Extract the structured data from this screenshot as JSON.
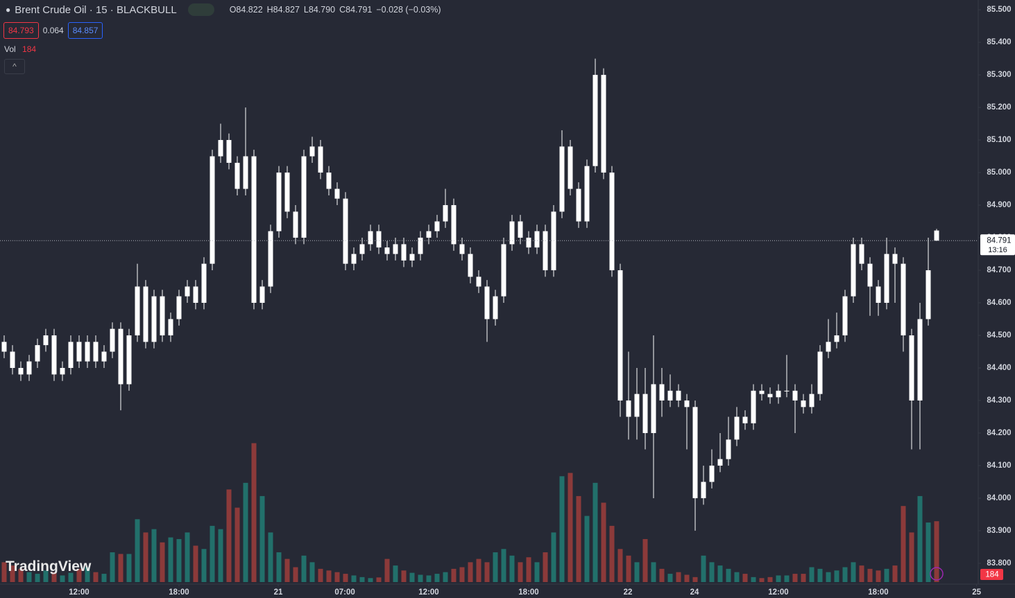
{
  "header": {
    "title": "Brent Crude Oil · 15 · BLACKBULL",
    "open": "O84.822",
    "high": "H84.827",
    "low": "L84.790",
    "close": "C84.791",
    "change": "−0.028 (−0.03%)",
    "bid": "84.793",
    "spread": "0.064",
    "ask": "84.857",
    "vol_label": "Vol",
    "vol_value": "184",
    "watermark": "TradingView",
    "price_tag": "84.791",
    "countdown": "13:16",
    "vol_tag": "184"
  },
  "chart_data": {
    "type": "candlestick",
    "candle_color": "#ffffff",
    "up_volume_color": "#22706b",
    "down_volume_color": "#8c3a3a",
    "xlim": [
      -0.5,
      117
    ],
    "xticks": [
      {
        "value": 9,
        "label": "12:00"
      },
      {
        "value": 21,
        "label": "18:00"
      },
      {
        "value": 32.92,
        "label": "21"
      },
      {
        "value": 40.92,
        "label": "07:00"
      },
      {
        "value": 51,
        "label": "12:00"
      },
      {
        "value": 63,
        "label": "18:00"
      },
      {
        "value": 74.92,
        "label": "22"
      },
      {
        "value": 82.92,
        "label": "24"
      },
      {
        "value": 93,
        "label": "12:00"
      },
      {
        "value": 105,
        "label": "18:00"
      },
      {
        "value": 116.8,
        "label": "25"
      }
    ],
    "ylim": [
      83.736,
      85.53
    ],
    "yticks": [
      {
        "value": 83.8,
        "label": "83.800"
      },
      {
        "value": 83.9,
        "label": "83.900"
      },
      {
        "value": 84.0,
        "label": "84.000"
      },
      {
        "value": 84.1,
        "label": "84.100"
      },
      {
        "value": 84.2,
        "label": "84.200"
      },
      {
        "value": 84.3,
        "label": "84.300"
      },
      {
        "value": 84.4,
        "label": "84.400"
      },
      {
        "value": 84.5,
        "label": "84.500"
      },
      {
        "value": 84.6,
        "label": "84.600"
      },
      {
        "value": 84.7,
        "label": "84.700"
      },
      {
        "value": 84.8,
        "label": "84.800"
      },
      {
        "value": 84.9,
        "label": "84.900"
      },
      {
        "value": 85.0,
        "label": "85.000"
      },
      {
        "value": 85.1,
        "label": "85.100"
      },
      {
        "value": 85.2,
        "label": "85.200"
      },
      {
        "value": 85.3,
        "label": "85.300"
      },
      {
        "value": 85.4,
        "label": "85.400"
      },
      {
        "value": 85.5,
        "label": "85.500"
      }
    ],
    "last_price": 84.791,
    "vlim": [
      0,
      440
    ],
    "open": [
      84.48,
      84.45,
      84.4,
      84.38,
      84.42,
      84.47,
      84.5,
      84.38,
      84.4,
      84.48,
      84.42,
      84.48,
      84.42,
      84.45,
      84.52,
      84.35,
      84.5,
      84.65,
      84.48,
      84.62,
      84.5,
      84.55,
      84.62,
      84.65,
      84.6,
      84.72,
      85.05,
      85.1,
      85.03,
      84.95,
      85.05,
      84.6,
      84.65,
      84.82,
      85.0,
      84.88,
      84.8,
      85.05,
      85.08,
      85.0,
      84.95,
      84.92,
      84.72,
      84.75,
      84.78,
      84.82,
      84.77,
      84.75,
      84.78,
      84.73,
      84.75,
      84.8,
      84.82,
      84.85,
      84.9,
      84.78,
      84.75,
      84.68,
      84.65,
      84.55,
      84.62,
      84.78,
      84.85,
      84.8,
      84.77,
      84.82,
      84.7,
      84.88,
      85.08,
      84.95,
      84.85,
      85.02,
      85.3,
      85.0,
      84.7,
      84.3,
      84.25,
      84.32,
      84.2,
      84.35,
      84.3,
      84.33,
      84.3,
      84.28,
      84.0,
      84.05,
      84.1,
      84.12,
      84.18,
      84.25,
      84.23,
      84.33,
      84.32,
      84.31,
      84.33,
      84.33,
      84.3,
      84.28,
      84.32,
      84.45,
      84.48,
      84.5,
      84.62,
      84.78,
      84.72,
      84.65,
      84.6,
      84.75,
      84.72,
      84.5,
      84.3,
      84.55,
      84.822
    ],
    "high": [
      84.5,
      84.47,
      84.42,
      84.44,
      84.49,
      84.52,
      84.52,
      84.42,
      84.5,
      84.5,
      84.5,
      84.5,
      84.47,
      84.54,
      84.54,
      84.52,
      84.72,
      84.67,
      84.64,
      84.64,
      84.57,
      84.64,
      84.67,
      84.67,
      84.74,
      85.07,
      85.15,
      85.12,
      85.05,
      85.2,
      85.07,
      84.67,
      84.84,
      85.02,
      85.02,
      84.9,
      85.07,
      85.11,
      85.1,
      85.02,
      84.97,
      84.94,
      84.77,
      84.8,
      84.84,
      84.84,
      84.79,
      84.8,
      84.8,
      84.77,
      84.82,
      84.84,
      84.87,
      84.95,
      84.92,
      84.8,
      84.77,
      84.7,
      84.67,
      84.64,
      84.8,
      84.87,
      84.87,
      84.82,
      84.84,
      84.84,
      84.9,
      85.13,
      85.1,
      84.97,
      85.04,
      85.35,
      85.32,
      85.02,
      84.72,
      84.45,
      84.4,
      84.4,
      84.5,
      84.4,
      84.38,
      84.35,
      84.32,
      84.3,
      84.1,
      84.15,
      84.2,
      84.25,
      84.28,
      84.27,
      84.35,
      84.35,
      84.34,
      84.35,
      84.44,
      84.35,
      84.32,
      84.35,
      84.47,
      84.55,
      84.57,
      84.64,
      84.8,
      84.8,
      84.74,
      84.67,
      84.8,
      84.77,
      84.74,
      84.52,
      84.6,
      84.8,
      84.827
    ],
    "low": [
      84.43,
      84.38,
      84.36,
      84.36,
      84.4,
      84.45,
      84.36,
      84.36,
      84.38,
      84.4,
      84.4,
      84.4,
      84.4,
      84.43,
      84.27,
      84.33,
      84.48,
      84.46,
      84.46,
      84.48,
      84.48,
      84.53,
      84.6,
      84.58,
      84.58,
      84.7,
      85.03,
      85.01,
      84.93,
      84.93,
      84.58,
      84.58,
      84.63,
      84.8,
      84.86,
      84.78,
      84.78,
      85.03,
      84.98,
      84.93,
      84.9,
      84.7,
      84.7,
      84.73,
      84.76,
      84.75,
      84.73,
      84.73,
      84.71,
      84.71,
      84.73,
      84.78,
      84.8,
      84.83,
      84.76,
      84.73,
      84.66,
      84.63,
      84.48,
      84.53,
      84.6,
      84.76,
      84.78,
      84.75,
      84.75,
      84.68,
      84.68,
      84.86,
      84.93,
      84.83,
      84.83,
      85.0,
      84.98,
      84.68,
      84.25,
      84.18,
      84.18,
      84.15,
      84.0,
      84.25,
      84.28,
      84.28,
      84.15,
      83.9,
      83.98,
      84.03,
      84.08,
      84.1,
      84.16,
      84.21,
      84.21,
      84.3,
      84.29,
      84.29,
      84.31,
      84.2,
      84.26,
      84.26,
      84.3,
      84.43,
      84.46,
      84.48,
      84.6,
      84.7,
      84.56,
      84.56,
      84.58,
      84.6,
      84.45,
      84.15,
      84.15,
      84.53,
      84.79
    ],
    "close": [
      84.45,
      84.4,
      84.38,
      84.42,
      84.47,
      84.5,
      84.38,
      84.4,
      84.48,
      84.42,
      84.48,
      84.42,
      84.45,
      84.52,
      84.35,
      84.5,
      84.65,
      84.48,
      84.62,
      84.5,
      84.55,
      84.62,
      84.65,
      84.6,
      84.72,
      85.05,
      85.1,
      85.03,
      84.95,
      85.05,
      84.6,
      84.65,
      84.82,
      85.0,
      84.88,
      84.8,
      85.05,
      85.08,
      85.0,
      84.95,
      84.92,
      84.72,
      84.75,
      84.78,
      84.82,
      84.77,
      84.75,
      84.78,
      84.73,
      84.75,
      84.8,
      84.82,
      84.85,
      84.9,
      84.78,
      84.75,
      84.68,
      84.65,
      84.55,
      84.62,
      84.78,
      84.85,
      84.8,
      84.77,
      84.82,
      84.7,
      84.88,
      85.08,
      84.95,
      84.85,
      85.02,
      85.3,
      85.0,
      84.7,
      84.3,
      84.25,
      84.32,
      84.2,
      84.35,
      84.3,
      84.33,
      84.3,
      84.28,
      84.0,
      84.05,
      84.1,
      84.12,
      84.18,
      84.25,
      84.23,
      84.33,
      84.32,
      84.31,
      84.33,
      84.33,
      84.3,
      84.28,
      84.32,
      84.45,
      84.48,
      84.5,
      84.62,
      84.78,
      84.72,
      84.65,
      84.6,
      84.75,
      84.72,
      84.5,
      84.3,
      84.55,
      84.7,
      84.791
    ],
    "volume": [
      60,
      50,
      40,
      30,
      25,
      35,
      30,
      20,
      28,
      40,
      45,
      30,
      25,
      90,
      85,
      85,
      190,
      150,
      160,
      120,
      135,
      130,
      150,
      110,
      100,
      170,
      160,
      280,
      225,
      300,
      420,
      260,
      150,
      90,
      70,
      45,
      80,
      60,
      40,
      35,
      30,
      25,
      20,
      15,
      12,
      14,
      70,
      50,
      35,
      28,
      22,
      20,
      25,
      30,
      40,
      45,
      60,
      70,
      60,
      90,
      100,
      80,
      60,
      75,
      60,
      90,
      150,
      320,
      330,
      260,
      200,
      300,
      240,
      170,
      100,
      80,
      60,
      130,
      60,
      40,
      25,
      30,
      22,
      15,
      80,
      60,
      50,
      40,
      30,
      25,
      15,
      12,
      15,
      20,
      20,
      25,
      25,
      45,
      40,
      30,
      35,
      45,
      60,
      50,
      40,
      35,
      40,
      50,
      230,
      150,
      260,
      180,
      184
    ]
  }
}
